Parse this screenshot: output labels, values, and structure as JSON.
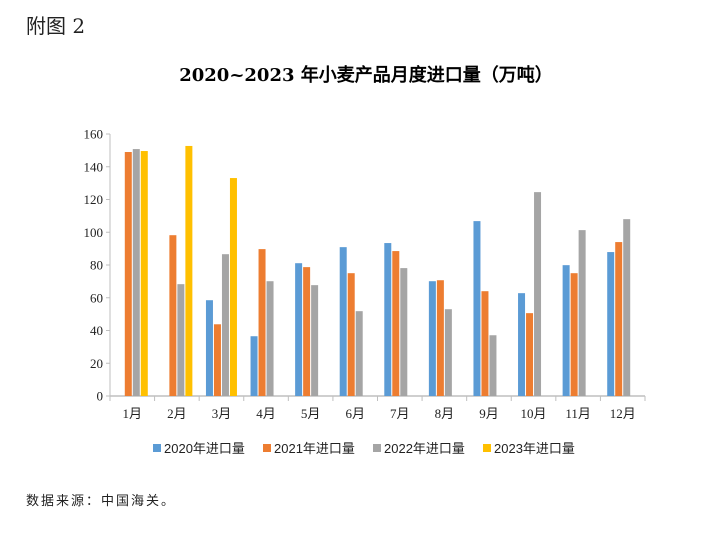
{
  "figure_label": "附图 2",
  "source": "数据来源：中国海关。",
  "chart_data": {
    "type": "bar",
    "title": "2020~2023 年小麦产品月度进口量（万吨）",
    "xlabel": "",
    "ylabel": "",
    "ylim": [
      0,
      160
    ],
    "yticks": [
      0,
      20,
      40,
      60,
      80,
      100,
      120,
      140,
      160
    ],
    "grid": false,
    "legend_position": "bottom",
    "categories": [
      "1月",
      "2月",
      "3月",
      "4月",
      "5月",
      "6月",
      "7月",
      "8月",
      "9月",
      "10月",
      "11月",
      "12月"
    ],
    "series": [
      {
        "name": "2020年进口量",
        "color": "#5B9BD5",
        "values": [
          null,
          null,
          58.5,
          36.5,
          81.1,
          90.9,
          93.4,
          70.1,
          106.8,
          62.8,
          79.9,
          87.9
        ]
      },
      {
        "name": "2021年进口量",
        "color": "#ED7D31",
        "values": [
          149.0,
          98.2,
          43.8,
          89.7,
          78.7,
          75.0,
          88.5,
          70.7,
          64.0,
          50.6,
          75.0,
          94.0
        ]
      },
      {
        "name": "2022年进口量",
        "color": "#A5A5A5",
        "values": [
          150.8,
          68.3,
          86.6,
          70.1,
          67.7,
          51.8,
          78.1,
          53.0,
          37.1,
          124.5,
          101.3,
          108.0
        ]
      },
      {
        "name": "2023年进口量",
        "color": "#FFC000",
        "values": [
          149.6,
          152.7,
          133.1,
          null,
          null,
          null,
          null,
          null,
          null,
          null,
          null,
          null
        ]
      }
    ]
  }
}
